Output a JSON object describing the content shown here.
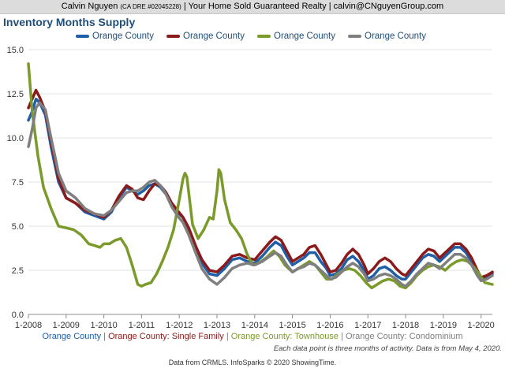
{
  "header": {
    "name": "Calvin Nguyen",
    "dre": "(CA DRE #02045228)",
    "company": "Your Home Sold Guaranteed Realty",
    "email": "calvin@CNguyenGroup.com",
    "separator": "|"
  },
  "chart_data": {
    "type": "line",
    "title": "Inventory Months Supply",
    "xlabel": "",
    "ylabel": "",
    "ylim": [
      0,
      15
    ],
    "xlim": [
      2008,
      2020.3
    ],
    "y_ticks": [
      "0.0",
      "2.5",
      "5.0",
      "7.5",
      "10.0",
      "12.5",
      "15.0"
    ],
    "x_ticks": [
      "1-2008",
      "1-2009",
      "1-2010",
      "1-2011",
      "1-2012",
      "1-2013",
      "1-2014",
      "1-2015",
      "1-2016",
      "1-2017",
      "1-2018",
      "1-2019",
      "1-2020"
    ],
    "grid": true,
    "legend_placement": "top",
    "series": [
      {
        "name": "Orange County",
        "color": "#1f5fa8",
        "x": [
          2008.0,
          2008.1,
          2008.2,
          2008.3,
          2008.45,
          2008.6,
          2008.8,
          2009.0,
          2009.25,
          2009.5,
          2009.75,
          2010.0,
          2010.2,
          2010.4,
          2010.6,
          2010.75,
          2010.9,
          2011.05,
          2011.2,
          2011.35,
          2011.5,
          2011.65,
          2011.8,
          2011.95,
          2012.1,
          2012.25,
          2012.45,
          2012.6,
          2012.8,
          2013.0,
          2013.2,
          2013.4,
          2013.6,
          2013.8,
          2014.0,
          2014.2,
          2014.4,
          2014.55,
          2014.7,
          2014.85,
          2015.0,
          2015.15,
          2015.3,
          2015.45,
          2015.6,
          2015.75,
          2015.9,
          2016.0,
          2016.15,
          2016.3,
          2016.45,
          2016.6,
          2016.75,
          2016.9,
          2017.0,
          2017.15,
          2017.3,
          2017.45,
          2017.6,
          2017.75,
          2017.9,
          2018.0,
          2018.15,
          2018.3,
          2018.45,
          2018.6,
          2018.75,
          2018.9,
          2019.0,
          2019.15,
          2019.3,
          2019.45,
          2019.6,
          2019.75,
          2019.9,
          2020.0,
          2020.15,
          2020.3
        ],
        "values": [
          11.0,
          11.5,
          12.2,
          12.0,
          11.3,
          9.5,
          7.5,
          6.6,
          6.3,
          5.8,
          5.6,
          5.4,
          5.8,
          6.6,
          7.2,
          7.0,
          6.8,
          7.0,
          7.3,
          7.4,
          7.2,
          6.8,
          6.2,
          5.8,
          5.5,
          4.8,
          3.6,
          2.9,
          2.3,
          2.2,
          2.6,
          3.1,
          3.2,
          3.0,
          2.9,
          3.3,
          3.8,
          4.1,
          3.9,
          3.3,
          2.8,
          3.0,
          3.2,
          3.5,
          3.5,
          3.0,
          2.6,
          2.2,
          2.3,
          2.6,
          3.1,
          3.3,
          3.0,
          2.5,
          2.0,
          2.2,
          2.6,
          2.7,
          2.5,
          2.2,
          2.0,
          2.0,
          2.4,
          2.8,
          3.2,
          3.4,
          3.3,
          3.0,
          3.2,
          3.5,
          3.8,
          3.8,
          3.5,
          3.0,
          2.3,
          2.0,
          2.1,
          2.3
        ]
      },
      {
        "name": "Orange County",
        "color": "#8b1a1a",
        "x": [
          2008.0,
          2008.1,
          2008.2,
          2008.3,
          2008.45,
          2008.6,
          2008.8,
          2009.0,
          2009.25,
          2009.5,
          2009.75,
          2010.0,
          2010.2,
          2010.4,
          2010.6,
          2010.75,
          2010.9,
          2011.05,
          2011.2,
          2011.35,
          2011.5,
          2011.65,
          2011.8,
          2011.95,
          2012.1,
          2012.25,
          2012.45,
          2012.6,
          2012.8,
          2013.0,
          2013.2,
          2013.4,
          2013.6,
          2013.8,
          2014.0,
          2014.2,
          2014.4,
          2014.55,
          2014.7,
          2014.85,
          2015.0,
          2015.15,
          2015.3,
          2015.45,
          2015.6,
          2015.75,
          2015.9,
          2016.0,
          2016.15,
          2016.3,
          2016.45,
          2016.6,
          2016.75,
          2016.9,
          2017.0,
          2017.15,
          2017.3,
          2017.45,
          2017.6,
          2017.75,
          2017.9,
          2018.0,
          2018.15,
          2018.3,
          2018.45,
          2018.6,
          2018.75,
          2018.9,
          2019.0,
          2019.15,
          2019.3,
          2019.45,
          2019.6,
          2019.75,
          2019.9,
          2020.0,
          2020.15,
          2020.3
        ],
        "values": [
          11.7,
          12.2,
          12.7,
          12.3,
          11.5,
          9.8,
          7.7,
          6.6,
          6.3,
          5.9,
          5.7,
          5.5,
          5.9,
          6.7,
          7.3,
          7.1,
          6.6,
          6.5,
          7.0,
          7.4,
          7.3,
          6.9,
          6.3,
          5.9,
          5.5,
          4.9,
          3.8,
          3.1,
          2.5,
          2.4,
          2.8,
          3.3,
          3.4,
          3.2,
          3.1,
          3.6,
          4.1,
          4.4,
          4.2,
          3.6,
          3.0,
          3.2,
          3.4,
          3.8,
          3.9,
          3.4,
          2.8,
          2.4,
          2.5,
          2.9,
          3.4,
          3.7,
          3.4,
          2.8,
          2.3,
          2.6,
          3.0,
          3.2,
          3.0,
          2.6,
          2.3,
          2.2,
          2.6,
          3.0,
          3.4,
          3.7,
          3.6,
          3.2,
          3.4,
          3.7,
          4.0,
          4.0,
          3.7,
          3.2,
          2.5,
          2.1,
          2.2,
          2.4
        ]
      },
      {
        "name": "Orange County",
        "color": "#7a9a2a",
        "x": [
          2008.0,
          2008.1,
          2008.25,
          2008.4,
          2008.6,
          2008.8,
          2009.0,
          2009.2,
          2009.4,
          2009.6,
          2009.75,
          2009.9,
          2010.0,
          2010.15,
          2010.3,
          2010.45,
          2010.6,
          2010.75,
          2010.9,
          2011.0,
          2011.1,
          2011.25,
          2011.4,
          2011.55,
          2011.7,
          2011.85,
          2012.0,
          2012.1,
          2012.15,
          2012.2,
          2012.25,
          2012.35,
          2012.5,
          2012.65,
          2012.8,
          2012.9,
          2013.0,
          2013.05,
          2013.1,
          2013.2,
          2013.35,
          2013.5,
          2013.65,
          2013.8,
          2013.95,
          2014.1,
          2014.3,
          2014.5,
          2014.65,
          2014.8,
          2015.0,
          2015.15,
          2015.3,
          2015.45,
          2015.6,
          2015.75,
          2015.9,
          2016.05,
          2016.2,
          2016.35,
          2016.5,
          2016.65,
          2016.8,
          2016.95,
          2017.1,
          2017.25,
          2017.4,
          2017.55,
          2017.7,
          2017.85,
          2018.0,
          2018.15,
          2018.3,
          2018.45,
          2018.6,
          2018.75,
          2018.9,
          2019.05,
          2019.2,
          2019.35,
          2019.5,
          2019.65,
          2019.8,
          2019.95,
          2020.1,
          2020.3
        ],
        "values": [
          14.2,
          11.5,
          9.0,
          7.2,
          6.0,
          5.0,
          4.9,
          4.8,
          4.5,
          4.0,
          3.9,
          3.8,
          4.0,
          4.0,
          4.2,
          4.3,
          3.8,
          2.8,
          1.7,
          1.6,
          1.7,
          1.8,
          2.3,
          3.0,
          3.8,
          4.8,
          6.5,
          7.7,
          8.0,
          7.8,
          6.9,
          5.1,
          4.3,
          4.8,
          5.5,
          5.4,
          7.0,
          8.2,
          8.0,
          6.5,
          5.2,
          4.8,
          4.3,
          3.4,
          2.8,
          2.9,
          3.2,
          3.6,
          3.3,
          2.8,
          2.4,
          2.6,
          2.8,
          3.0,
          2.8,
          2.4,
          2.0,
          2.0,
          2.3,
          2.5,
          2.6,
          2.5,
          2.2,
          1.8,
          1.5,
          1.7,
          1.9,
          2.0,
          1.9,
          1.6,
          1.5,
          1.8,
          2.2,
          2.5,
          2.7,
          2.8,
          2.7,
          2.5,
          2.8,
          3.0,
          3.1,
          3.0,
          2.7,
          2.3,
          1.8,
          1.7
        ]
      },
      {
        "name": "Orange County",
        "color": "#7f7f7f",
        "x": [
          2008.0,
          2008.1,
          2008.2,
          2008.3,
          2008.45,
          2008.6,
          2008.8,
          2009.0,
          2009.25,
          2009.5,
          2009.75,
          2010.0,
          2010.2,
          2010.4,
          2010.6,
          2010.75,
          2010.9,
          2011.05,
          2011.2,
          2011.35,
          2011.5,
          2011.65,
          2011.8,
          2011.95,
          2012.1,
          2012.25,
          2012.45,
          2012.6,
          2012.8,
          2013.0,
          2013.2,
          2013.4,
          2013.6,
          2013.8,
          2014.0,
          2014.2,
          2014.4,
          2014.55,
          2014.7,
          2014.85,
          2015.0,
          2015.15,
          2015.3,
          2015.45,
          2015.6,
          2015.75,
          2015.9,
          2016.0,
          2016.15,
          2016.3,
          2016.45,
          2016.6,
          2016.75,
          2016.9,
          2017.0,
          2017.15,
          2017.3,
          2017.45,
          2017.6,
          2017.75,
          2017.9,
          2018.0,
          2018.15,
          2018.3,
          2018.45,
          2018.6,
          2018.75,
          2018.9,
          2019.0,
          2019.15,
          2019.3,
          2019.45,
          2019.6,
          2019.75,
          2019.9,
          2020.0,
          2020.15,
          2020.3
        ],
        "values": [
          9.5,
          10.5,
          11.7,
          12.0,
          11.6,
          10.0,
          8.0,
          7.0,
          6.6,
          6.0,
          5.7,
          5.6,
          5.9,
          6.4,
          6.9,
          7.0,
          7.0,
          7.2,
          7.5,
          7.6,
          7.3,
          6.8,
          6.1,
          5.6,
          5.2,
          4.5,
          3.4,
          2.6,
          2.0,
          1.7,
          2.1,
          2.6,
          2.8,
          2.9,
          2.8,
          3.0,
          3.3,
          3.5,
          3.3,
          2.8,
          2.4,
          2.6,
          2.7,
          2.9,
          2.8,
          2.5,
          2.2,
          2.0,
          2.1,
          2.4,
          2.7,
          2.9,
          2.7,
          2.3,
          1.9,
          2.0,
          2.2,
          2.3,
          2.2,
          2.0,
          1.7,
          1.6,
          1.9,
          2.3,
          2.6,
          2.9,
          2.8,
          2.6,
          2.8,
          3.1,
          3.4,
          3.4,
          3.2,
          2.8,
          2.2,
          1.9,
          2.0,
          2.2
        ]
      }
    ]
  },
  "footer": {
    "legend_items": [
      {
        "label": "Orange County",
        "color": "#1f5fa8"
      },
      {
        "label": "Orange County: Single Family",
        "color": "#8b1a1a"
      },
      {
        "label": "Orange County: Townhouse",
        "color": "#7a9a2a"
      },
      {
        "label": "Orange County: Condominium",
        "color": "#7f7f7f"
      }
    ],
    "separator": "|",
    "note": "Each data point is three months of activity. Data is from May 4, 2020.",
    "credit": "Data from CRMLS. InfoSparks © 2020 ShowingTime."
  }
}
